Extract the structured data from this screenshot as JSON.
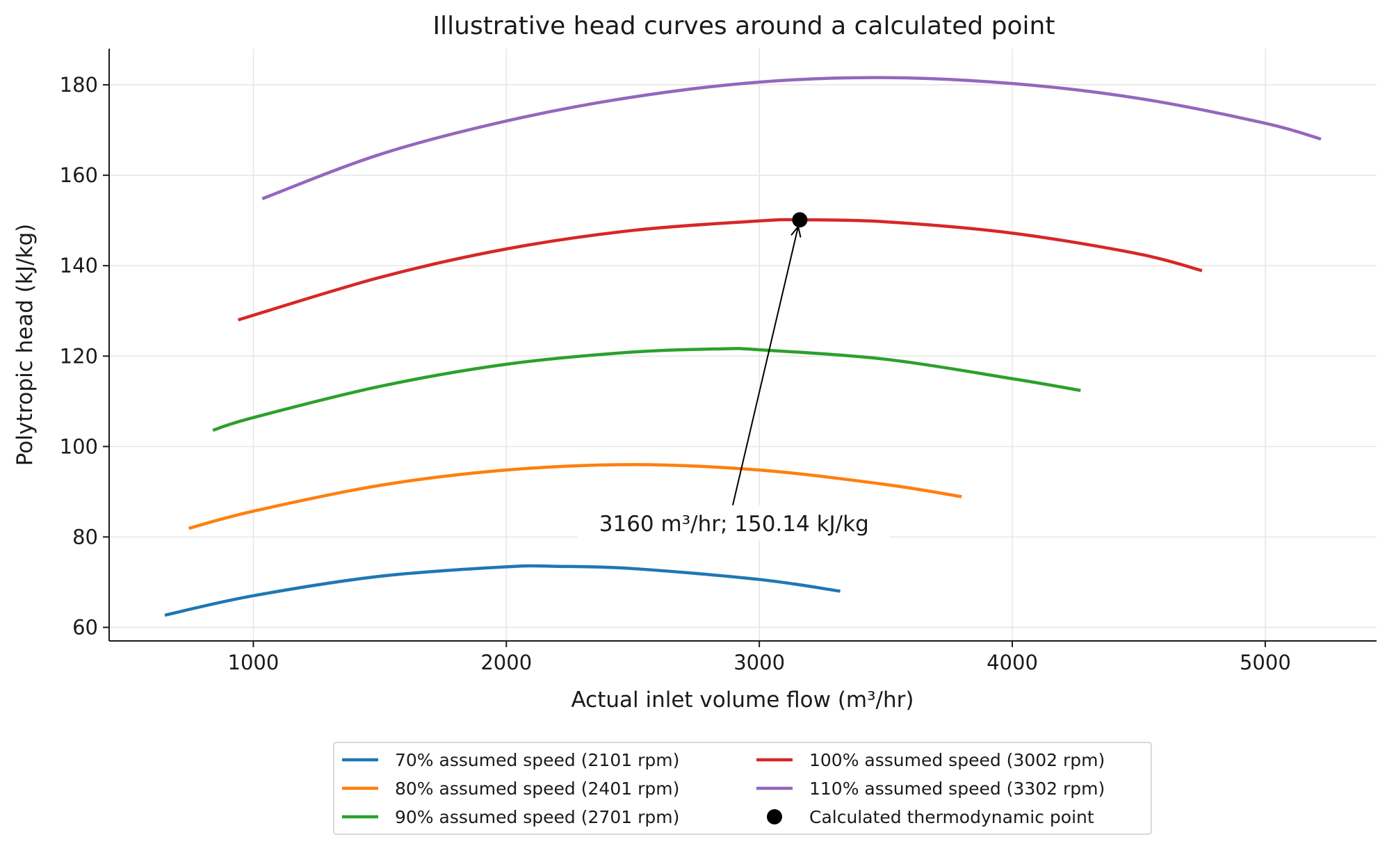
{
  "chart_data": {
    "type": "line",
    "title": "Illustrative head curves around a calculated point",
    "xlabel": "Actual inlet volume flow (m³/hr)",
    "ylabel": "Polytropic head (kJ/kg)",
    "xlim": [
      430,
      5440
    ],
    "ylim": [
      57,
      188
    ],
    "xticks": [
      1000,
      2000,
      3000,
      4000,
      5000
    ],
    "yticks": [
      60,
      80,
      100,
      120,
      140,
      160,
      180
    ],
    "grid": true,
    "legend_placement": "bottom-center",
    "series": [
      {
        "name": "70% assumed speed (2101 rpm)",
        "color": "#1f77b4",
        "x": [
          650,
          1000,
          1500,
          2000,
          2200,
          2500,
          3000,
          3320
        ],
        "y": [
          62.7,
          67.0,
          71.3,
          73.4,
          73.5,
          73.0,
          70.6,
          68.0
        ]
      },
      {
        "name": "80% assumed speed (2401 rpm)",
        "color": "#ff7f0e",
        "x": [
          745,
          1000,
          1500,
          2000,
          2500,
          3000,
          3500,
          3800
        ],
        "y": [
          81.9,
          85.7,
          91.4,
          94.8,
          96.0,
          94.8,
          91.6,
          88.9
        ]
      },
      {
        "name": "90% assumed speed (2701 rpm)",
        "color": "#2ca02c",
        "x": [
          840,
          1000,
          1500,
          2000,
          2500,
          2850,
          3000,
          3500,
          4000,
          4270
        ],
        "y": [
          103.6,
          106.4,
          113.3,
          118.2,
          120.9,
          121.6,
          121.4,
          119.3,
          115.0,
          112.4
        ]
      },
      {
        "name": "100% assumed speed (3002 rpm)",
        "color": "#d62728",
        "x": [
          940,
          1500,
          2000,
          2500,
          3000,
          3160,
          3500,
          4000,
          4500,
          4750
        ],
        "y": [
          128.0,
          137.4,
          143.7,
          147.8,
          149.9,
          150.14,
          149.7,
          147.2,
          142.6,
          138.9
        ]
      },
      {
        "name": "110% assumed speed (3302 rpm)",
        "color": "#9467bd",
        "x": [
          1035,
          1500,
          2000,
          2500,
          3000,
          3480,
          4000,
          4500,
          5000,
          5220
        ],
        "y": [
          154.8,
          164.6,
          172.0,
          177.3,
          180.6,
          181.6,
          180.3,
          177.0,
          171.5,
          168.0
        ]
      }
    ],
    "point": {
      "name": "Calculated thermodynamic point",
      "color": "#000000",
      "x": 3160,
      "y": 150.14
    },
    "annotation": {
      "text": "3160 m³/hr; 150.14 kJ/kg",
      "text_x": 2900,
      "text_y": 81.3,
      "arrow_start_x": 2895,
      "arrow_start_y": 87,
      "arrow_end_x": 3160,
      "arrow_end_y": 150.14
    },
    "legend": [
      "70% assumed speed (2101 rpm)",
      "80% assumed speed (2401 rpm)",
      "90% assumed speed (2701 rpm)",
      "100% assumed speed (3002 rpm)",
      "110% assumed speed (3302 rpm)",
      "Calculated thermodynamic point"
    ]
  }
}
